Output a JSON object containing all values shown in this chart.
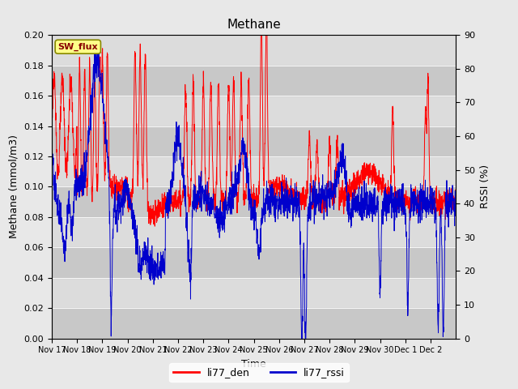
{
  "title": "Methane",
  "xlabel": "Time",
  "ylabel_left": "Methane (mmol/m3)",
  "ylabel_right": "RSSI (%)",
  "ylim_left": [
    0.0,
    0.2
  ],
  "ylim_right": [
    0,
    90
  ],
  "left_yticks": [
    0.0,
    0.02,
    0.04,
    0.06,
    0.08,
    0.1,
    0.12,
    0.14,
    0.16,
    0.18,
    0.2
  ],
  "right_yticks": [
    0,
    10,
    20,
    30,
    40,
    50,
    60,
    70,
    80,
    90
  ],
  "xtick_labels": [
    "Nov 17",
    "Nov 18",
    "Nov 19",
    "Nov 20",
    "Nov 21",
    "Nov 22",
    "Nov 23",
    "Nov 24",
    "Nov 25",
    "Nov 26",
    "Nov 27",
    "Nov 28",
    "Nov 29",
    "Nov 30",
    "Dec 1",
    "Dec 2"
  ],
  "legend_entries": [
    "li77_den",
    "li77_rssi"
  ],
  "line_color_red": "#FF0000",
  "line_color_blue": "#0000CC",
  "fig_bg_color": "#E8E8E8",
  "plot_bg_color": "#DCDCDC",
  "dark_band_color": "#C8C8C8",
  "sw_flux_label": "SW_flux",
  "sw_flux_bg": "#FFFF88",
  "sw_flux_border": "#888800",
  "figsize": [
    6.4,
    4.8
  ],
  "dpi": 100
}
